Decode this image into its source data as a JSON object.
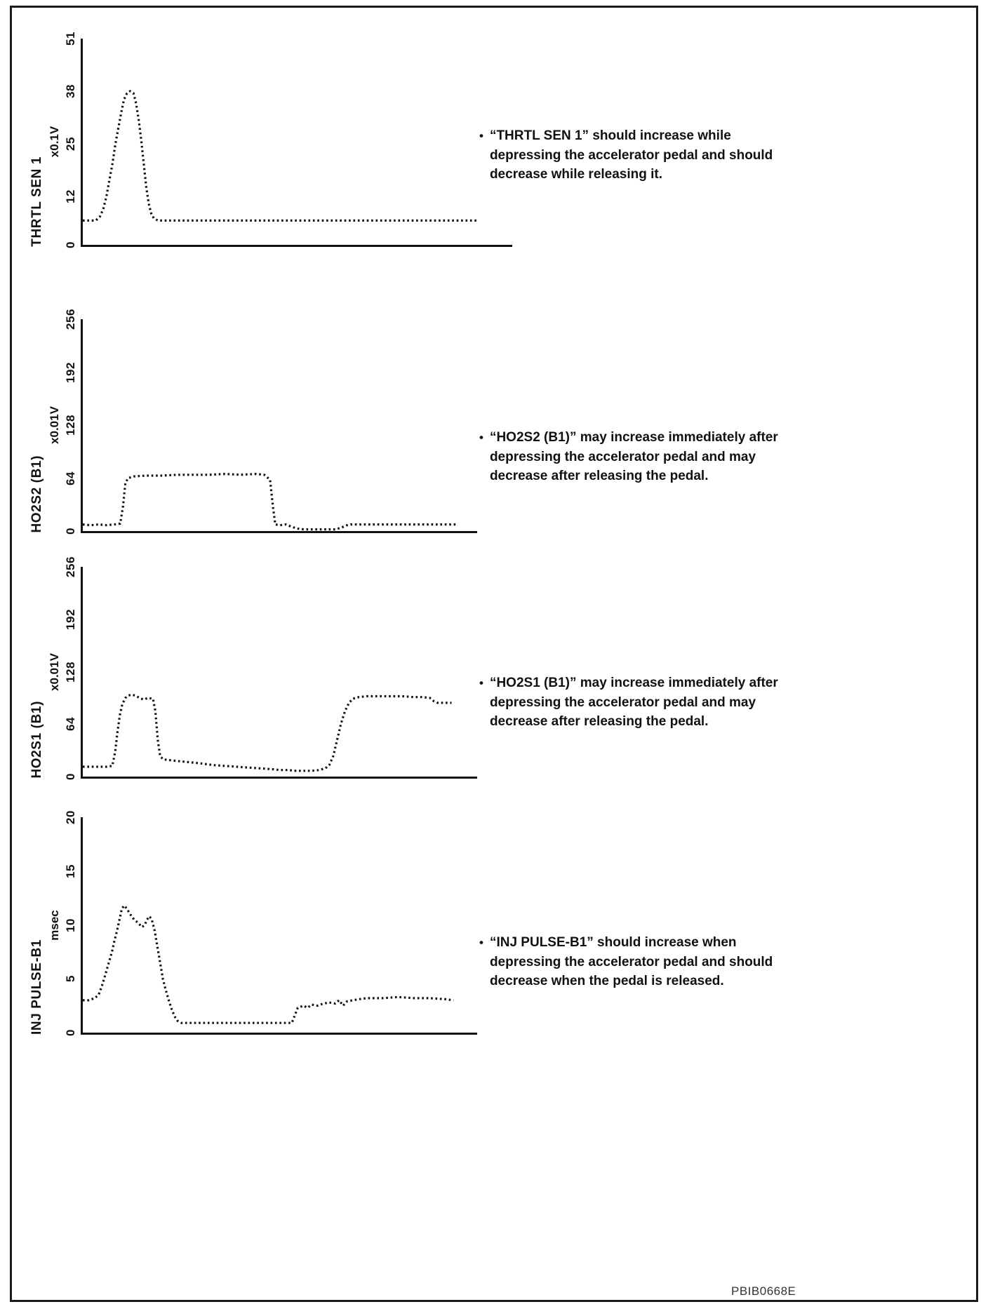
{
  "page": {
    "figure_code": "PBIB0668E"
  },
  "chart_data": [
    {
      "type": "line",
      "style": "dotted",
      "name": "THRTL SEN 1",
      "ylabel": "x0.1V",
      "ylim": [
        0,
        51
      ],
      "yticks": [
        0,
        12,
        25,
        38,
        51
      ],
      "xlim": [
        0,
        100
      ],
      "xticks": [],
      "grid": false,
      "legend": "none",
      "points": [
        [
          0,
          6
        ],
        [
          3,
          6
        ],
        [
          4,
          7
        ],
        [
          4.8,
          9
        ],
        [
          5.5,
          12
        ],
        [
          6.2,
          16
        ],
        [
          6.9,
          20
        ],
        [
          7.6,
          25
        ],
        [
          8.3,
          29
        ],
        [
          9,
          33
        ],
        [
          9.6,
          36
        ],
        [
          10.3,
          37.5
        ],
        [
          11,
          38
        ],
        [
          11.8,
          37.5
        ],
        [
          12.4,
          35
        ],
        [
          13,
          31
        ],
        [
          13.6,
          26
        ],
        [
          14.2,
          20
        ],
        [
          14.8,
          14
        ],
        [
          15.4,
          10
        ],
        [
          16,
          7.5
        ],
        [
          16.6,
          6.5
        ],
        [
          17.5,
          6
        ],
        [
          92,
          6
        ]
      ]
    },
    {
      "type": "line",
      "style": "dotted",
      "name": "HO2S2 (B1)",
      "ylabel": "x0.01V",
      "ylim": [
        0,
        256
      ],
      "yticks": [
        0,
        64,
        128,
        192,
        256
      ],
      "xlim": [
        0,
        100
      ],
      "xticks": [],
      "grid": false,
      "legend": "none",
      "points": [
        [
          0,
          8
        ],
        [
          2,
          7
        ],
        [
          4,
          8
        ],
        [
          6,
          7
        ],
        [
          8,
          8
        ],
        [
          9.5,
          9
        ],
        [
          10.2,
          30
        ],
        [
          10.8,
          58
        ],
        [
          11.5,
          64
        ],
        [
          13,
          66
        ],
        [
          16,
          67
        ],
        [
          20,
          67
        ],
        [
          24,
          68
        ],
        [
          28,
          68
        ],
        [
          32,
          68
        ],
        [
          36,
          69
        ],
        [
          40,
          68
        ],
        [
          44,
          69
        ],
        [
          46,
          68
        ],
        [
          47.5,
          62
        ],
        [
          48.2,
          30
        ],
        [
          48.8,
          8
        ],
        [
          50,
          7
        ],
        [
          51.5,
          8
        ],
        [
          53,
          5
        ],
        [
          54.5,
          3
        ],
        [
          56,
          2
        ],
        [
          58,
          2
        ],
        [
          60,
          2
        ],
        [
          62,
          2
        ],
        [
          64,
          2
        ],
        [
          65.5,
          4
        ],
        [
          67,
          7
        ],
        [
          68,
          8
        ],
        [
          72,
          8
        ],
        [
          76,
          8
        ],
        [
          80,
          8
        ],
        [
          84,
          8
        ],
        [
          88,
          8
        ],
        [
          92,
          8
        ],
        [
          95,
          8
        ]
      ]
    },
    {
      "type": "line",
      "style": "dotted",
      "name": "HO2S1 (B1)",
      "ylabel": "x0.01V",
      "ylim": [
        0,
        256
      ],
      "yticks": [
        0,
        64,
        128,
        192,
        256
      ],
      "xlim": [
        0,
        100
      ],
      "xticks": [],
      "grid": false,
      "legend": "none",
      "points": [
        [
          0,
          12
        ],
        [
          3,
          12
        ],
        [
          6,
          12
        ],
        [
          7.5,
          13
        ],
        [
          8.2,
          30
        ],
        [
          8.8,
          55
        ],
        [
          9.4,
          75
        ],
        [
          10,
          88
        ],
        [
          10.8,
          96
        ],
        [
          11.6,
          99
        ],
        [
          12.4,
          100
        ],
        [
          13.2,
          99
        ],
        [
          14,
          97
        ],
        [
          14.8,
          95
        ],
        [
          15.6,
          94
        ],
        [
          16.4,
          96
        ],
        [
          17.8,
          95
        ],
        [
          18.4,
          80
        ],
        [
          19,
          45
        ],
        [
          19.6,
          25
        ],
        [
          20.4,
          21
        ],
        [
          22,
          20
        ],
        [
          24,
          19
        ],
        [
          26,
          18
        ],
        [
          28,
          17
        ],
        [
          30,
          16
        ],
        [
          33,
          14
        ],
        [
          36,
          13
        ],
        [
          39,
          12
        ],
        [
          42,
          11
        ],
        [
          45,
          10
        ],
        [
          48,
          9
        ],
        [
          50,
          8
        ],
        [
          52,
          8
        ],
        [
          54,
          7
        ],
        [
          56,
          7
        ],
        [
          58,
          7
        ],
        [
          60,
          8
        ],
        [
          61.5,
          10
        ],
        [
          62.5,
          14
        ],
        [
          63.5,
          25
        ],
        [
          64.5,
          45
        ],
        [
          65.5,
          65
        ],
        [
          66.5,
          80
        ],
        [
          67.5,
          90
        ],
        [
          68.5,
          95
        ],
        [
          70,
          97
        ],
        [
          72,
          98
        ],
        [
          75,
          98
        ],
        [
          78,
          98
        ],
        [
          81,
          98
        ],
        [
          84,
          97
        ],
        [
          86,
          97
        ],
        [
          88,
          96
        ],
        [
          89,
          92
        ],
        [
          90,
          90
        ],
        [
          93.5,
          90
        ]
      ]
    },
    {
      "type": "line",
      "style": "dotted",
      "name": "INJ PULSE-B1",
      "ylabel": "msec",
      "ylim": [
        0,
        20
      ],
      "yticks": [
        0,
        5,
        10,
        15,
        20
      ],
      "xlim": [
        0,
        100
      ],
      "xticks": [],
      "grid": false,
      "legend": "none",
      "points": [
        [
          0,
          3
        ],
        [
          1.5,
          3
        ],
        [
          3,
          3.2
        ],
        [
          4,
          3.5
        ],
        [
          5,
          4.5
        ],
        [
          5.8,
          5.5
        ],
        [
          6.6,
          6.5
        ],
        [
          7.4,
          7.5
        ],
        [
          8,
          8.5
        ],
        [
          8.7,
          9.5
        ],
        [
          9.3,
          10.5
        ],
        [
          9.9,
          11.5
        ],
        [
          10.5,
          11.8
        ],
        [
          11.2,
          11.5
        ],
        [
          12,
          11
        ],
        [
          13,
          10.5
        ],
        [
          14,
          10.2
        ],
        [
          15,
          9.8
        ],
        [
          15.7,
          10
        ],
        [
          16.3,
          10.5
        ],
        [
          16.9,
          10.8
        ],
        [
          17.5,
          10.5
        ],
        [
          18.2,
          9.5
        ],
        [
          18.9,
          8
        ],
        [
          19.6,
          6.5
        ],
        [
          20.3,
          5
        ],
        [
          21,
          4
        ],
        [
          21.8,
          3
        ],
        [
          22.5,
          2.2
        ],
        [
          23.3,
          1.5
        ],
        [
          24,
          1.1
        ],
        [
          25,
          0.9
        ],
        [
          28,
          0.9
        ],
        [
          32,
          0.9
        ],
        [
          36,
          0.9
        ],
        [
          40,
          0.9
        ],
        [
          44,
          0.9
        ],
        [
          48,
          0.9
        ],
        [
          51,
          0.9
        ],
        [
          53,
          0.9
        ],
        [
          54.5,
          2.3
        ],
        [
          56,
          2.5
        ],
        [
          57,
          2.3
        ],
        [
          58,
          2.6
        ],
        [
          59.5,
          2.5
        ],
        [
          61,
          2.7
        ],
        [
          62.5,
          2.8
        ],
        [
          64,
          2.7
        ],
        [
          65,
          3
        ],
        [
          66,
          2.5
        ],
        [
          67,
          2.9
        ],
        [
          68.5,
          3
        ],
        [
          70,
          3.1
        ],
        [
          72,
          3.2
        ],
        [
          76,
          3.2
        ],
        [
          80,
          3.3
        ],
        [
          84,
          3.2
        ],
        [
          88,
          3.2
        ],
        [
          92,
          3.1
        ],
        [
          94,
          3
        ]
      ]
    }
  ],
  "annotations": [
    {
      "bullet": "•",
      "text": "“THRTL SEN 1” should increase while depressing the accelerator pedal and should decrease while releasing it."
    },
    {
      "bullet": "•",
      "text": "“HO2S2 (B1)” may increase immediately after depressing the accelerator pedal and may decrease after releasing the pedal."
    },
    {
      "bullet": "•",
      "text": "“HO2S1 (B1)” may increase immediately after depressing the accelerator pedal and may decrease after releasing the pedal."
    },
    {
      "bullet": "•",
      "text": "“INJ PULSE-B1” should increase when depressing the accelerator pedal and should decrease when the pedal is released."
    }
  ]
}
